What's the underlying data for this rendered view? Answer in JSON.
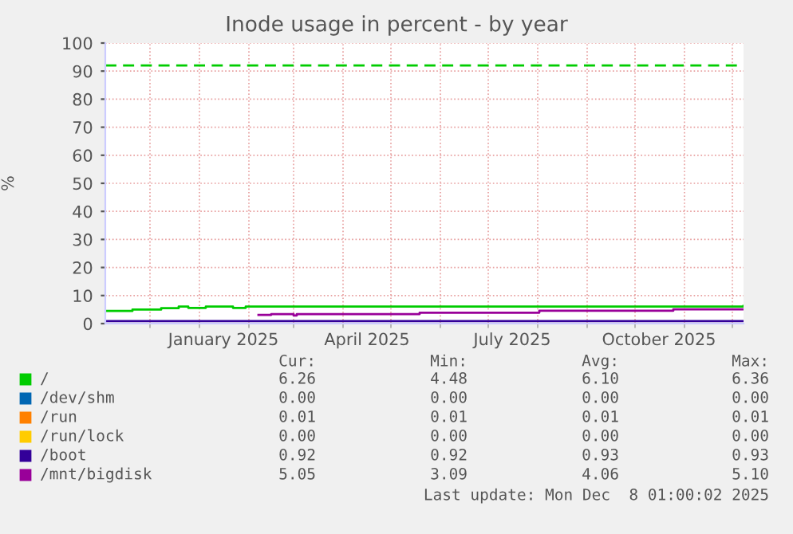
{
  "chart_data": {
    "type": "step",
    "title": "Inode usage in percent - by year",
    "ylabel": "%",
    "xlim": [
      "2024-11-03",
      "2025-12-08"
    ],
    "xticks": [
      {
        "value": "2024-12-01",
        "label": null
      },
      {
        "value": "2025-01-01",
        "label": null
      },
      {
        "value": "2025-01-16",
        "label": "January 2025"
      },
      {
        "value": "2025-02-01",
        "label": null
      },
      {
        "value": "2025-03-01",
        "label": null
      },
      {
        "value": "2025-04-01",
        "label": null
      },
      {
        "value": "2025-04-16",
        "label": "April 2025"
      },
      {
        "value": "2025-05-01",
        "label": null
      },
      {
        "value": "2025-06-01",
        "label": null
      },
      {
        "value": "2025-07-01",
        "label": null
      },
      {
        "value": "2025-07-16",
        "label": "July 2025"
      },
      {
        "value": "2025-08-01",
        "label": null
      },
      {
        "value": "2025-09-01",
        "label": null
      },
      {
        "value": "2025-10-01",
        "label": null
      },
      {
        "value": "2025-10-16",
        "label": "October 2025"
      },
      {
        "value": "2025-11-01",
        "label": null
      },
      {
        "value": "2025-12-01",
        "label": null
      }
    ],
    "ylim": [
      0,
      100
    ],
    "yticks": [
      0,
      10,
      20,
      30,
      40,
      50,
      60,
      70,
      80,
      90,
      100
    ],
    "grid": true,
    "legend": "bottom",
    "ref_lines": [
      {
        "axis": "y",
        "value": 92,
        "label": null,
        "color": "#00cc00",
        "line_style": "dashed"
      }
    ],
    "series": [
      {
        "name": "/",
        "color": "#00cc00",
        "x": [
          "2024-11-03",
          "2024-11-20",
          "2024-12-08",
          "2024-12-19",
          "2024-12-25",
          "2025-01-05",
          "2025-01-22",
          "2025-01-30",
          "2025-12-08"
        ],
        "values": [
          4.5,
          5.0,
          5.5,
          6.1,
          5.6,
          6.1,
          5.6,
          6.1,
          6.3
        ]
      },
      {
        "name": "/dev/shm",
        "color": "#0066b3"
      },
      {
        "name": "/run",
        "color": "#ff8000"
      },
      {
        "name": "/run/lock",
        "color": "#ffcc00"
      },
      {
        "name": "/boot",
        "color": "#330099",
        "x": [
          "2024-11-03",
          "2025-12-08"
        ],
        "values": [
          0.9,
          0.9
        ]
      },
      {
        "name": "/mnt/bigdisk",
        "color": "#990099",
        "x": [
          "2025-02-07",
          "2025-02-15",
          "2025-03-01",
          "2025-03-03",
          "2025-05-19",
          "2025-08-02",
          "2025-10-25",
          "2025-12-08"
        ],
        "values": [
          3.1,
          3.4,
          2.9,
          3.4,
          3.9,
          4.6,
          5.1,
          5.1
        ]
      }
    ],
    "annotations": [
      "Cur:",
      "Min:",
      "Avg:",
      "Max:",
      "6.26",
      "4.48",
      "6.10",
      "6.36",
      "0.00",
      "0.00",
      "0.00",
      "0.00",
      "0.01",
      "0.01",
      "0.01",
      "0.01",
      "0.00",
      "0.00",
      "0.00",
      "0.00",
      "0.92",
      "0.92",
      "0.93",
      "0.93",
      "5.05",
      "3.09",
      "4.06",
      "5.10",
      "Last update: Mon Dec  8 01:00:02 2025"
    ]
  }
}
